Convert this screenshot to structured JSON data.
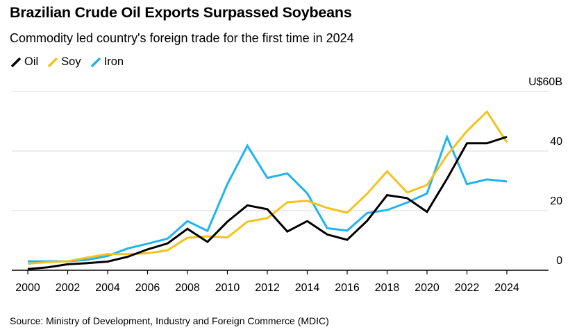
{
  "title": "Brazilian Crude Oil Exports Surpassed Soybeans",
  "subtitle": "Commodity led country's foreign trade for the first time in 2024",
  "source": "Source: Ministry of Development, Industry and Foreign Commerce (MDIC)",
  "colors": {
    "oil": "#000000",
    "soy": "#f5c21b",
    "iron": "#1fb4ef",
    "grid": "#d9d9d9",
    "axis": "#000000"
  },
  "chart_data": {
    "type": "line",
    "title": "Brazilian Crude Oil Exports Surpassed Soybeans",
    "subtitle": "Commodity led country's foreign trade for the first time in 2024",
    "x": [
      2000,
      2001,
      2002,
      2003,
      2004,
      2005,
      2006,
      2007,
      2008,
      2009,
      2010,
      2011,
      2012,
      2013,
      2014,
      2015,
      2016,
      2017,
      2018,
      2019,
      2020,
      2021,
      2022,
      2023,
      2024
    ],
    "x_ticks": [
      "2000",
      "2002",
      "2004",
      "2006",
      "2008",
      "2010",
      "2012",
      "2014",
      "2016",
      "2018",
      "2020",
      "2022",
      "2024"
    ],
    "y_ticks": [
      {
        "value": 60,
        "label": "U$60B"
      },
      {
        "value": 40,
        "label": "40"
      },
      {
        "value": 20,
        "label": "20"
      },
      {
        "value": 0,
        "label": "0"
      }
    ],
    "ylim": [
      0,
      60
    ],
    "xlim": [
      2000,
      2026
    ],
    "grid": true,
    "legend_position": "top-left",
    "series": [
      {
        "name": "Oil",
        "key": "oil",
        "values": [
          0.4,
          1.0,
          2.0,
          2.4,
          2.9,
          4.5,
          7.0,
          9.0,
          13.9,
          9.5,
          16.3,
          21.8,
          20.5,
          13.0,
          16.5,
          12.0,
          10.2,
          16.6,
          25.2,
          24.2,
          19.6,
          30.7,
          42.6,
          42.6,
          44.8
        ]
      },
      {
        "name": "Soy",
        "key": "soy",
        "values": [
          2.2,
          2.7,
          3.0,
          4.3,
          5.4,
          5.4,
          5.7,
          6.7,
          10.9,
          11.4,
          11.0,
          16.3,
          17.5,
          22.8,
          23.3,
          20.9,
          19.3,
          25.7,
          33.2,
          26.1,
          28.6,
          38.6,
          46.7,
          53.2,
          42.9
        ]
      },
      {
        "name": "Iron",
        "key": "iron",
        "values": [
          3.0,
          3.0,
          3.0,
          3.5,
          4.8,
          7.3,
          8.9,
          10.6,
          16.5,
          13.2,
          28.9,
          41.8,
          31.0,
          32.5,
          25.8,
          14.1,
          13.3,
          19.2,
          20.2,
          22.7,
          25.8,
          44.7,
          28.9,
          30.5,
          29.8
        ]
      }
    ]
  }
}
